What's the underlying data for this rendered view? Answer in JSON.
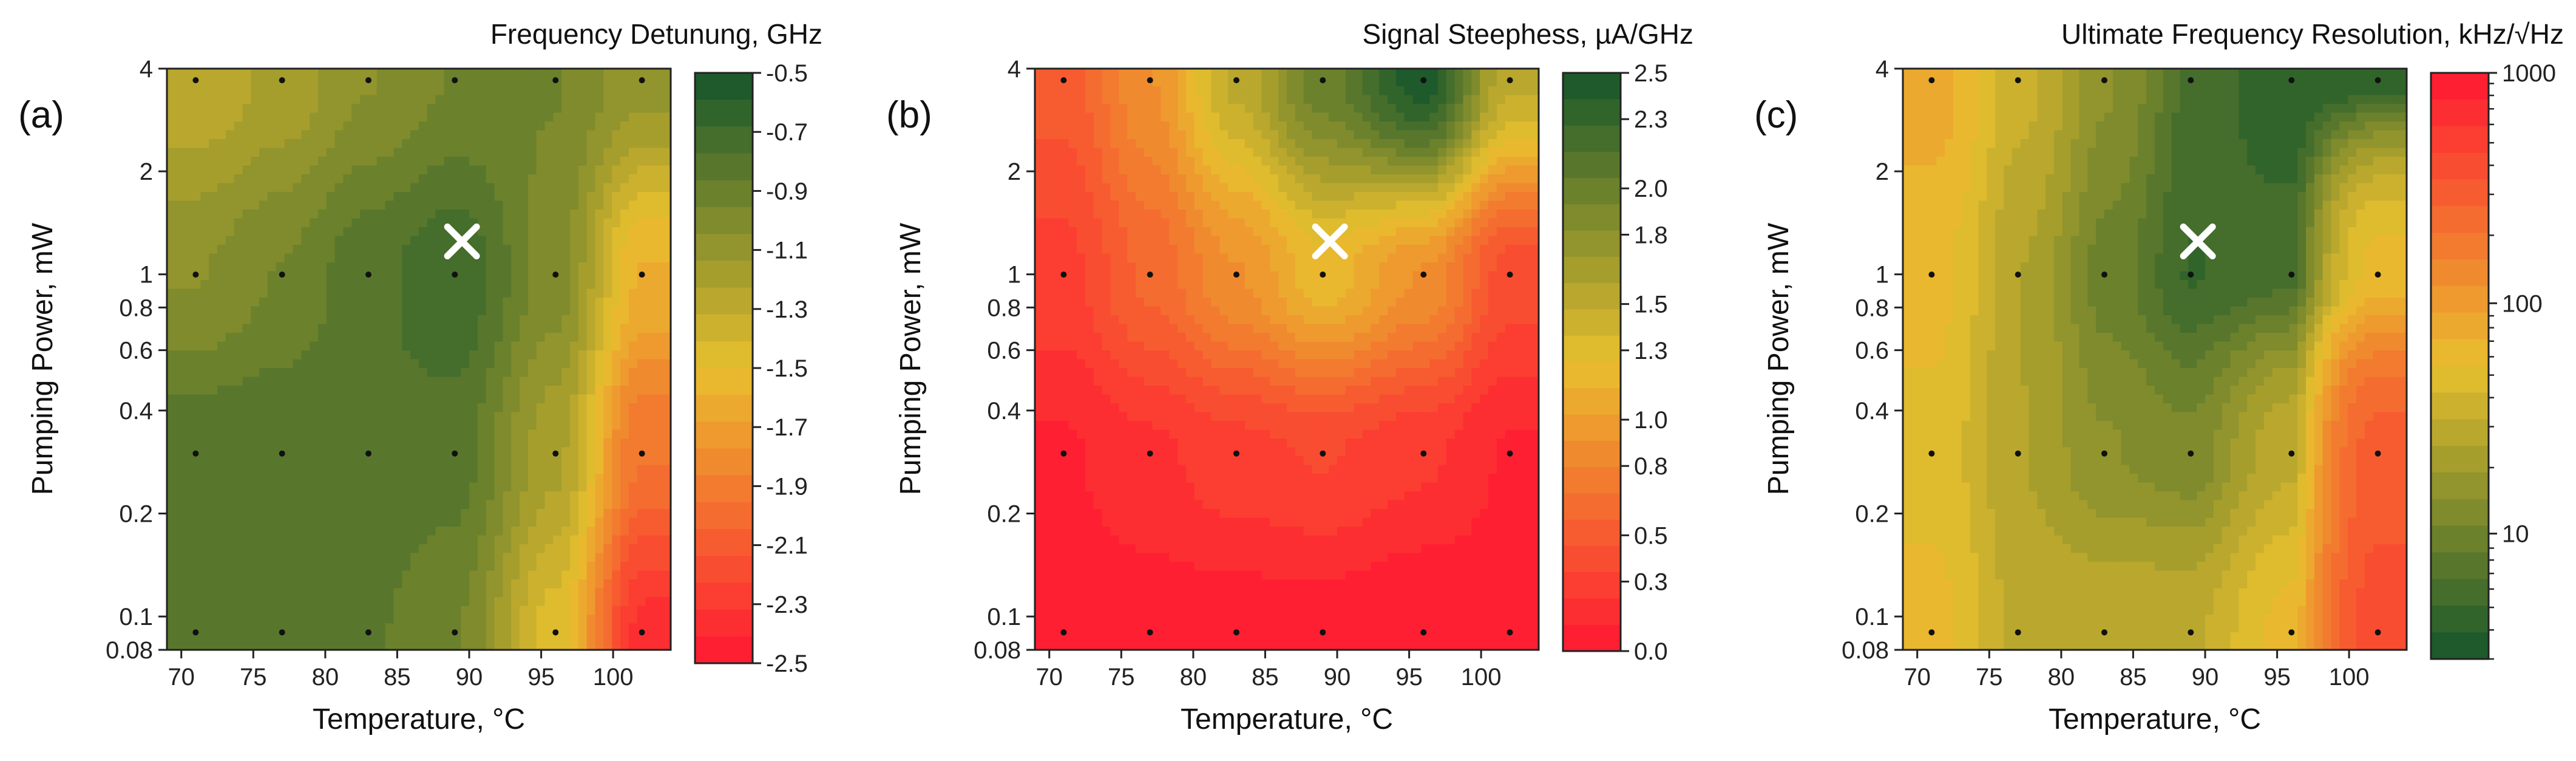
{
  "figure": {
    "marker_label": "measured point",
    "optimum_marker": "x-marker"
  },
  "chart_data": [
    {
      "type": "contour",
      "panel_letter": "(a)",
      "title": "Frequency Detunung, GHz",
      "xlabel": "Temperature, °C",
      "ylabel": "Pumping Power, mW",
      "xlim": [
        68,
        103
      ],
      "ylim": [
        0.08,
        4
      ],
      "yscale": "log",
      "xticks": [
        70,
        75,
        80,
        85,
        90,
        95,
        100
      ],
      "xtick_labels": [
        "70",
        "75",
        "80",
        "85",
        "90",
        "95",
        "100"
      ],
      "yticks": [
        0.08,
        0.1,
        0.2,
        0.4,
        0.6,
        0.8,
        1,
        2,
        4
      ],
      "ytick_labels": [
        "0.08",
        "0.1",
        "0.2",
        "0.4",
        "0.6",
        "0.8",
        "1",
        "2",
        "4"
      ],
      "colorbar": {
        "scale": "linear",
        "min": -2.5,
        "max": -0.5,
        "ticks": [
          -0.5,
          -0.7,
          -0.9,
          -1.1,
          -1.3,
          -1.5,
          -1.7,
          -1.9,
          -2.1,
          -2.3,
          -2.5
        ],
        "tick_labels": [
          "-0.5",
          "-0.7",
          "-0.9",
          "-1.1",
          "-1.3",
          "-1.5",
          "-1.7",
          "-1.9",
          "-2.1",
          "-2.3",
          "-2.5"
        ],
        "high_color": "#1e5a2b",
        "mid_color": "#e9c02e",
        "low_color": "#ff1f32"
      },
      "grid_x": [
        70,
        76,
        82,
        88,
        95,
        101
      ],
      "grid_y": [
        0.09,
        0.3,
        1,
        3.7
      ],
      "z": [
        [
          -0.83,
          -0.82,
          -0.85,
          -0.95,
          -1.45,
          -2.35
        ],
        [
          -0.8,
          -0.78,
          -0.78,
          -0.82,
          -1.2,
          -1.95
        ],
        [
          -1.05,
          -0.95,
          -0.8,
          -0.7,
          -1.0,
          -1.6
        ],
        [
          -1.3,
          -1.2,
          -1.05,
          -0.95,
          -0.95,
          -1.1
        ]
      ],
      "marker": {
        "x": 88.5,
        "y": 1.25,
        "label": "×"
      }
    },
    {
      "type": "contour",
      "panel_letter": "(b)",
      "title": "Signal Steephess, µA/GHz",
      "xlabel": "Temperature, °C",
      "ylabel": "Pumping Power, mW",
      "xlim": [
        68,
        103
      ],
      "ylim": [
        0.08,
        4
      ],
      "yscale": "log",
      "xticks": [
        70,
        75,
        80,
        85,
        90,
        95,
        100
      ],
      "xtick_labels": [
        "70",
        "75",
        "80",
        "85",
        "90",
        "95",
        "100"
      ],
      "yticks": [
        0.08,
        0.1,
        0.2,
        0.4,
        0.6,
        0.8,
        1,
        2,
        4
      ],
      "ytick_labels": [
        "0.08",
        "0.1",
        "0.2",
        "0.4",
        "0.6",
        "0.8",
        "1",
        "2",
        "4"
      ],
      "colorbar": {
        "scale": "linear",
        "min": 0.0,
        "max": 2.5,
        "ticks": [
          2.5,
          2.3,
          2.0,
          1.8,
          1.5,
          1.3,
          1.0,
          0.8,
          0.5,
          0.3,
          0.0
        ],
        "tick_labels": [
          "2.5",
          "2.3",
          "2.0",
          "1.8",
          "1.5",
          "1.3",
          "1.0",
          "0.8",
          "0.5",
          "0.3",
          "0.0"
        ],
        "high_color": "#1e5a2b",
        "mid_color": "#e9c02e",
        "low_color": "#ff1f32"
      },
      "grid_x": [
        70,
        76,
        82,
        88,
        95,
        101
      ],
      "grid_y": [
        0.09,
        0.3,
        1,
        3.7
      ],
      "z": [
        [
          0.05,
          0.05,
          0.05,
          0.05,
          0.0,
          0.05
        ],
        [
          0.1,
          0.2,
          0.3,
          0.35,
          0.25,
          0.1
        ],
        [
          0.3,
          0.6,
          0.9,
          1.2,
          0.9,
          0.4
        ],
        [
          0.5,
          0.9,
          1.5,
          2.0,
          2.45,
          1.5
        ]
      ],
      "marker": {
        "x": 88.5,
        "y": 1.25,
        "label": "×"
      }
    },
    {
      "type": "contour",
      "panel_letter": "(c)",
      "title": "Ultimate Frequency Resolution, kHz/√Hz",
      "xlabel": "Temperature, °C",
      "ylabel": "Pumping Power, mW",
      "xlim": [
        68,
        103
      ],
      "ylim": [
        0.08,
        4
      ],
      "yscale": "log",
      "xticks": [
        70,
        75,
        80,
        85,
        90,
        95,
        100
      ],
      "xtick_labels": [
        "70",
        "75",
        "80",
        "85",
        "90",
        "95",
        "100"
      ],
      "yticks": [
        0.08,
        0.1,
        0.2,
        0.4,
        0.6,
        0.8,
        1,
        2,
        4
      ],
      "ytick_labels": [
        "0.08",
        "0.1",
        "0.2",
        "0.4",
        "0.6",
        "0.8",
        "1",
        "2",
        "4"
      ],
      "colorbar": {
        "scale": "log",
        "min": 3,
        "max": 1000,
        "ticks": [
          1000,
          100,
          10
        ],
        "tick_labels": [
          "1000",
          "100",
          "10"
        ],
        "high_color": "#ff1f32",
        "mid_color": "#e9c02e",
        "low_color": "#1e5a2b"
      },
      "grid_x": [
        70,
        76,
        82,
        88,
        95,
        101
      ],
      "grid_y": [
        0.09,
        0.3,
        1,
        3.7
      ],
      "z": [
        [
          60,
          30,
          30,
          30,
          60,
          400
        ],
        [
          50,
          25,
          15,
          12,
          30,
          300
        ],
        [
          60,
          25,
          10,
          5,
          6,
          60
        ],
        [
          80,
          35,
          15,
          6,
          4,
          4
        ]
      ],
      "marker": {
        "x": 88.5,
        "y": 1.25,
        "label": "×"
      }
    }
  ]
}
